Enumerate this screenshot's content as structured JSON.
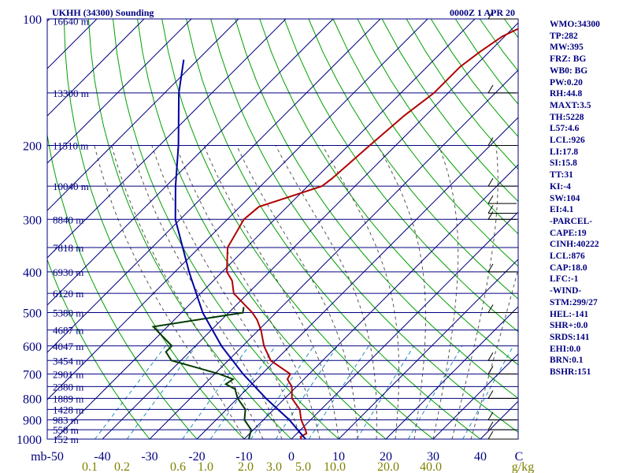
{
  "chart_data": {
    "type": "line",
    "title": "UKHH (34300) Sounding",
    "valid_time": "0000Z  1 APR 20",
    "y_axis_unit": "mb",
    "x_axis_unit": "g/kg",
    "pressure_levels": [
      100,
      200,
      300,
      400,
      500,
      600,
      700,
      800,
      900,
      1000
    ],
    "pressure_tick_labels": [
      "100",
      "200",
      "300",
      "400",
      "500",
      "600",
      "700",
      "800",
      "900",
      "1000"
    ],
    "temperature_ticks": [
      -50,
      -40,
      -30,
      -20,
      -10,
      0,
      10,
      20,
      30,
      40
    ],
    "temperature_tick_labels": [
      "mb-50",
      "-40",
      "-30",
      "-20",
      "-10",
      "0",
      "10",
      "20",
      "30",
      "40",
      "C"
    ],
    "mixing_ratio_tick_labels": [
      "0.1",
      "0.2",
      "0.6",
      "1.0",
      "2.0",
      "3.0",
      "5.0",
      "10.0",
      "20.0",
      "40.0",
      "g/kg"
    ],
    "height_labels": [
      {
        "p": 101,
        "label": "16640 m"
      },
      {
        "p": 150,
        "label": "13300 m"
      },
      {
        "p": 200,
        "label": "11510 m"
      },
      {
        "p": 250,
        "label": "10040 m"
      },
      {
        "p": 300,
        "label": "8840 m"
      },
      {
        "p": 350,
        "label": "7818 m"
      },
      {
        "p": 400,
        "label": "6930 m"
      },
      {
        "p": 450,
        "label": "6120 m"
      },
      {
        "p": 500,
        "label": "5380 m"
      },
      {
        "p": 550,
        "label": "4687 m"
      },
      {
        "p": 600,
        "label": "4047 m"
      },
      {
        "p": 650,
        "label": "3454 m"
      },
      {
        "p": 700,
        "label": "2901 m"
      },
      {
        "p": 750,
        "label": "2380 m"
      },
      {
        "p": 800,
        "label": "1889 m"
      },
      {
        "p": 850,
        "label": "1428 m"
      },
      {
        "p": 900,
        "label": "983 m"
      },
      {
        "p": 950,
        "label": "558 m"
      },
      {
        "p": 1000,
        "label": "152 m"
      }
    ],
    "series": [
      {
        "name": "Temperature",
        "color": "#b00000",
        "points": [
          [
            100,
            -36.5
          ],
          [
            110,
            -40.5
          ],
          [
            120,
            -42
          ],
          [
            130,
            -43
          ],
          [
            150,
            -43
          ],
          [
            170,
            -44.5
          ],
          [
            200,
            -45.5
          ],
          [
            240,
            -46.5
          ],
          [
            250,
            -47
          ],
          [
            280,
            -56
          ],
          [
            300,
            -56.5
          ],
          [
            350,
            -54
          ],
          [
            400,
            -49
          ],
          [
            420,
            -46
          ],
          [
            450,
            -43
          ],
          [
            500,
            -35
          ],
          [
            520,
            -32.5
          ],
          [
            550,
            -29.5
          ],
          [
            600,
            -25.5
          ],
          [
            650,
            -21
          ],
          [
            700,
            -14
          ],
          [
            720,
            -13.5
          ],
          [
            750,
            -11
          ],
          [
            800,
            -8.5
          ],
          [
            850,
            -4.5
          ],
          [
            900,
            -2
          ],
          [
            950,
            1
          ],
          [
            970,
            2
          ],
          [
            985,
            1.5
          ],
          [
            1000,
            2
          ]
        ]
      },
      {
        "name": "Dewpoint",
        "color": "#003a00",
        "points": [
          [
            485,
            -38
          ],
          [
            500,
            -37
          ],
          [
            540,
            -53
          ],
          [
            600,
            -45
          ],
          [
            620,
            -45
          ],
          [
            640,
            -43
          ],
          [
            650,
            -42
          ],
          [
            700,
            -29
          ],
          [
            720,
            -25
          ],
          [
            740,
            -25.5
          ],
          [
            760,
            -22.5
          ],
          [
            800,
            -20
          ],
          [
            850,
            -16
          ],
          [
            900,
            -14
          ],
          [
            950,
            -10.5
          ],
          [
            1000,
            -9
          ]
        ]
      },
      {
        "name": "Parcel",
        "color": "#0000a0",
        "points": [
          [
            125,
            -103
          ],
          [
            150,
            -97
          ],
          [
            200,
            -86
          ],
          [
            250,
            -78
          ],
          [
            300,
            -71
          ],
          [
            400,
            -57
          ],
          [
            500,
            -45.5
          ],
          [
            600,
            -34.5
          ],
          [
            700,
            -24
          ],
          [
            800,
            -14
          ],
          [
            900,
            -4.5
          ],
          [
            1000,
            3
          ]
        ]
      }
    ],
    "wind_barbs_pressure": [
      100,
      150,
      200,
      250,
      275,
      290,
      300,
      400,
      500,
      650,
      700,
      800,
      900,
      950,
      1000
    ],
    "grid": true,
    "colors": {
      "isobar": "#000080",
      "isotherm": "#000080",
      "dry_adiabat": "#00a000",
      "moist_adiabat": "#555555",
      "mixing_ratio": "#2090c0",
      "mixing_ratio_labels": "#808000",
      "axis_labels": "#000080"
    }
  },
  "indices": [
    "WMO:34300",
    "TP:282",
    "MW:395",
    "FRZ: BG",
    "WB0: BG",
    "PW:0.20",
    "RH:44.8",
    "MAXT:3.5",
    "TH:5228",
    "L57:4.6",
    "LCL:926",
    "LI:17.8",
    "SI:15.8",
    "TT:31",
    "KI:-4",
    "SW:104",
    "EI:4.1",
    "-PARCEL-",
    "CAPE:19",
    "CINH:40222",
    "LCL:876",
    "CAP:18.0",
    "LFC:-1",
    "-WIND-",
    "STM:299/27",
    "HEL:-141",
    "SHR+:0.0",
    "SRDS:141",
    "EHI:0.0",
    "BRN:0.1",
    "BSHR:151"
  ]
}
